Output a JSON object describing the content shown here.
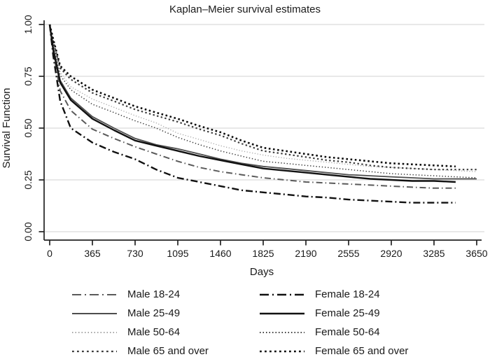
{
  "figure": {
    "title": "Kaplan–Meier survival estimates",
    "x_axis": {
      "label": "Days",
      "ticks": [
        0,
        365,
        730,
        1095,
        1460,
        1825,
        2190,
        2555,
        2920,
        3285,
        3650
      ],
      "range": [
        0,
        3650
      ]
    },
    "y_axis": {
      "label": "Survival Function",
      "ticks": [
        "0.00",
        "0.25",
        "0.50",
        "0.75",
        "1.00"
      ],
      "tick_values": [
        0,
        0.25,
        0.5,
        0.75,
        1
      ],
      "range": [
        0,
        1
      ]
    },
    "colors": {
      "text": "#1a1a1a",
      "gridline": "#d9d9d9",
      "axis": "#222222"
    }
  },
  "chart_data": {
    "type": "line",
    "title": "Kaplan–Meier survival estimates",
    "xlabel": "Days",
    "ylabel": "Survival Function",
    "xlim": [
      0,
      3650
    ],
    "ylim": [
      0,
      1
    ],
    "grid": "horizontal-only",
    "legend_position": "bottom-two-columns",
    "x": [
      0,
      30,
      90,
      180,
      365,
      550,
      730,
      910,
      1095,
      1280,
      1460,
      1640,
      1825,
      2010,
      2190,
      2370,
      2555,
      2740,
      2920,
      3100,
      3285,
      3470,
      3650
    ],
    "series": [
      {
        "name": "Male 50-64",
        "style": "dotted-fine",
        "color": "#a6a6a6",
        "width": 1.3,
        "dash": "1.2 2.6",
        "values": [
          1,
          0.91,
          0.77,
          0.7,
          0.64,
          0.6,
          0.56,
          0.525,
          0.475,
          0.445,
          0.415,
          0.39,
          0.37,
          0.355,
          0.345,
          0.335,
          0.325,
          0.315,
          0.31,
          0.305,
          0.3,
          0.295,
          0.29
        ]
      },
      {
        "name": "Male 65 and over",
        "style": "dotted-heavy",
        "color": "#3d3d3d",
        "width": 2.2,
        "dash": "2.4 3.4",
        "values": [
          1,
          0.92,
          0.79,
          0.735,
          0.67,
          0.63,
          0.59,
          0.56,
          0.53,
          0.495,
          0.465,
          0.425,
          0.39,
          0.375,
          0.36,
          0.345,
          0.335,
          0.32,
          0.31,
          0.305,
          0.3,
          0.3,
          0.3
        ]
      },
      {
        "name": "Male 25-49",
        "style": "solid",
        "color": "#4d4d4d",
        "width": 1.8,
        "dash": "",
        "values": [
          1,
          0.89,
          0.73,
          0.645,
          0.555,
          0.5,
          0.45,
          0.42,
          0.4,
          0.375,
          0.35,
          0.33,
          0.315,
          0.305,
          0.295,
          0.285,
          0.275,
          0.27,
          0.265,
          0.26,
          0.255,
          0.255,
          0.255
        ]
      },
      {
        "name": "Male 18-24",
        "style": "dash-dot",
        "color": "#5a5a5a",
        "width": 2.0,
        "dash": "9 4 1.5 4",
        "values": [
          1,
          0.87,
          0.68,
          0.585,
          0.495,
          0.45,
          0.41,
          0.375,
          0.34,
          0.31,
          0.29,
          0.275,
          0.26,
          0.25,
          0.24,
          0.235,
          0.23,
          0.225,
          0.22,
          0.215,
          0.21,
          0.21,
          null
        ]
      },
      {
        "name": "Female 50-64",
        "style": "dotted-fine",
        "color": "#3d3d3d",
        "width": 1.5,
        "dash": "1.4 2.8",
        "values": [
          1,
          0.9,
          0.755,
          0.685,
          0.615,
          0.575,
          0.535,
          0.5,
          0.455,
          0.42,
          0.39,
          0.365,
          0.34,
          0.33,
          0.32,
          0.31,
          0.3,
          0.29,
          0.28,
          0.275,
          0.27,
          0.265,
          0.26
        ]
      },
      {
        "name": "Female 65 and over",
        "style": "dotted-heavy",
        "color": "#0d0d0d",
        "width": 2.6,
        "dash": "2.6 3.6",
        "values": [
          1,
          0.93,
          0.8,
          0.75,
          0.685,
          0.645,
          0.605,
          0.575,
          0.545,
          0.51,
          0.48,
          0.44,
          0.405,
          0.39,
          0.375,
          0.36,
          0.35,
          0.34,
          0.33,
          0.325,
          0.32,
          0.315,
          null
        ]
      },
      {
        "name": "Female 25-49",
        "style": "solid",
        "color": "#111111",
        "width": 2.4,
        "dash": "",
        "values": [
          1,
          0.88,
          0.72,
          0.635,
          0.545,
          0.49,
          0.44,
          0.415,
          0.39,
          0.365,
          0.345,
          0.325,
          0.305,
          0.295,
          0.285,
          0.275,
          0.265,
          0.255,
          0.25,
          0.245,
          0.245,
          0.24,
          null
        ]
      },
      {
        "name": "Female 18-24",
        "style": "dash-dot",
        "color": "#111111",
        "width": 2.4,
        "dash": "10 4 2 4",
        "values": [
          1,
          0.85,
          0.63,
          0.5,
          0.43,
          0.385,
          0.35,
          0.3,
          0.26,
          0.24,
          0.22,
          0.2,
          0.19,
          0.18,
          0.17,
          0.165,
          0.155,
          0.15,
          0.145,
          0.14,
          0.14,
          0.14,
          null
        ]
      }
    ]
  },
  "legend": {
    "columns": [
      {
        "items": [
          {
            "label": "Male 18-24",
            "series": 3
          },
          {
            "label": "Male 25-49",
            "series": 2
          },
          {
            "label": "Male 50-64",
            "series": 0
          },
          {
            "label": "Male 65 and over",
            "series": 1
          }
        ]
      },
      {
        "items": [
          {
            "label": "Female 18-24",
            "series": 7
          },
          {
            "label": "Female 25-49",
            "series": 6
          },
          {
            "label": "Female 50-64",
            "series": 4
          },
          {
            "label": "Female 65 and over",
            "series": 5
          }
        ]
      }
    ]
  }
}
